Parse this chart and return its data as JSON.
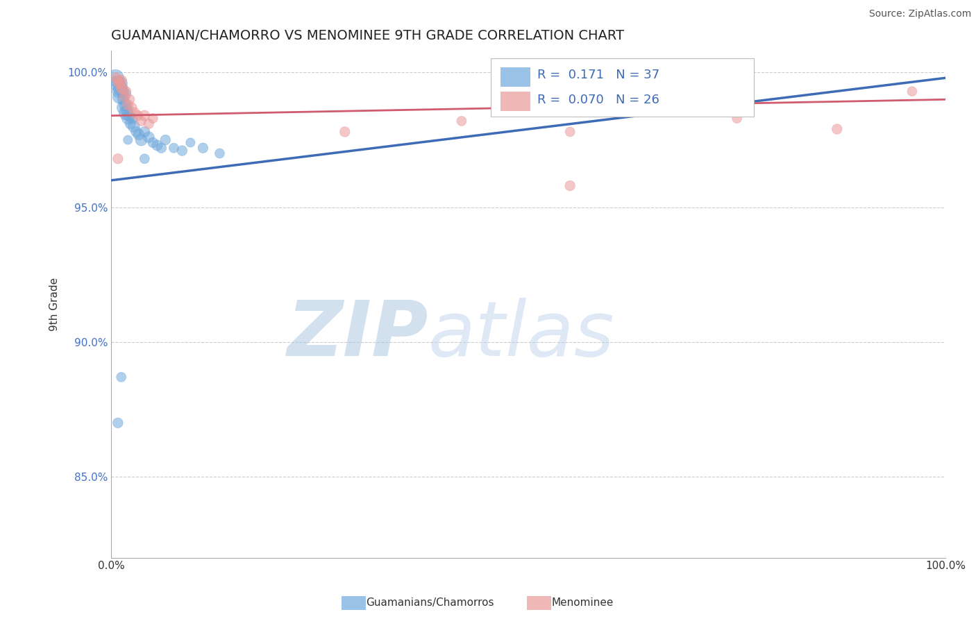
{
  "title": "GUAMANIAN/CHAMORRO VS MENOMINEE 9TH GRADE CORRELATION CHART",
  "source_text": "Source: ZipAtlas.com",
  "ylabel": "9th Grade",
  "xlim": [
    0.0,
    1.0
  ],
  "ylim": [
    0.82,
    1.008
  ],
  "yticks": [
    0.85,
    0.9,
    0.95,
    1.0
  ],
  "ytick_labels": [
    "85.0%",
    "90.0%",
    "95.0%",
    "100.0%"
  ],
  "xticks": [
    0.0,
    0.25,
    0.5,
    0.75,
    1.0
  ],
  "xtick_labels": [
    "0.0%",
    "",
    "",
    "",
    "100.0%"
  ],
  "legend_r_blue": "0.171",
  "legend_n_blue": "37",
  "legend_r_pink": "0.070",
  "legend_n_pink": "26",
  "blue_color": "#6fa8dc",
  "pink_color": "#ea9999",
  "blue_line_color": "#3d6bb5",
  "pink_line_color": "#d05a6e",
  "watermark_zip": "ZIP",
  "watermark_atlas": "atlas",
  "watermark_color_zip": "#b8cce4",
  "watermark_color_atlas": "#c9daf8",
  "blue_scatter_x": [
    0.005,
    0.007,
    0.009,
    0.01,
    0.011,
    0.012,
    0.013,
    0.014,
    0.015,
    0.016,
    0.017,
    0.018,
    0.019,
    0.02,
    0.021,
    0.023,
    0.025,
    0.027,
    0.03,
    0.033,
    0.036,
    0.04,
    0.045,
    0.05,
    0.055,
    0.065,
    0.075,
    0.085,
    0.095,
    0.11,
    0.13,
    0.04,
    0.06,
    0.02,
    0.56,
    0.008,
    0.012
  ],
  "blue_scatter_y": [
    0.998,
    0.996,
    0.993,
    0.991,
    0.994,
    0.996,
    0.993,
    0.99,
    0.987,
    0.992,
    0.988,
    0.985,
    0.986,
    0.983,
    0.984,
    0.981,
    0.983,
    0.98,
    0.978,
    0.977,
    0.975,
    0.978,
    0.976,
    0.974,
    0.973,
    0.975,
    0.972,
    0.971,
    0.974,
    0.972,
    0.97,
    0.968,
    0.972,
    0.975,
    0.999,
    0.87,
    0.887
  ],
  "blue_scatter_size": [
    300,
    250,
    180,
    200,
    220,
    160,
    150,
    130,
    200,
    170,
    160,
    220,
    140,
    160,
    130,
    120,
    130,
    150,
    120,
    130,
    150,
    120,
    130,
    110,
    120,
    110,
    100,
    110,
    90,
    110,
    100,
    100,
    110,
    90,
    110,
    110,
    100
  ],
  "pink_scatter_x": [
    0.006,
    0.008,
    0.01,
    0.012,
    0.014,
    0.016,
    0.018,
    0.02,
    0.022,
    0.025,
    0.028,
    0.032,
    0.036,
    0.04,
    0.045,
    0.05,
    0.01,
    0.012,
    0.28,
    0.42,
    0.55,
    0.75,
    0.87,
    0.96,
    0.55,
    0.008
  ],
  "pink_scatter_y": [
    0.998,
    0.997,
    0.996,
    0.997,
    0.994,
    0.991,
    0.993,
    0.988,
    0.99,
    0.987,
    0.985,
    0.984,
    0.982,
    0.984,
    0.981,
    0.983,
    0.996,
    0.994,
    0.978,
    0.982,
    0.958,
    0.983,
    0.979,
    0.993,
    0.978,
    0.968
  ],
  "pink_scatter_size": [
    120,
    110,
    120,
    130,
    120,
    110,
    100,
    120,
    110,
    100,
    120,
    110,
    100,
    120,
    110,
    100,
    110,
    100,
    110,
    100,
    110,
    100,
    110,
    100,
    100,
    110
  ],
  "blue_line_x0": 0.0,
  "blue_line_y0": 0.96,
  "blue_line_x1": 1.0,
  "blue_line_y1": 0.998,
  "pink_line_x0": 0.0,
  "pink_line_y0": 0.984,
  "pink_line_x1": 1.0,
  "pink_line_y1": 0.99
}
